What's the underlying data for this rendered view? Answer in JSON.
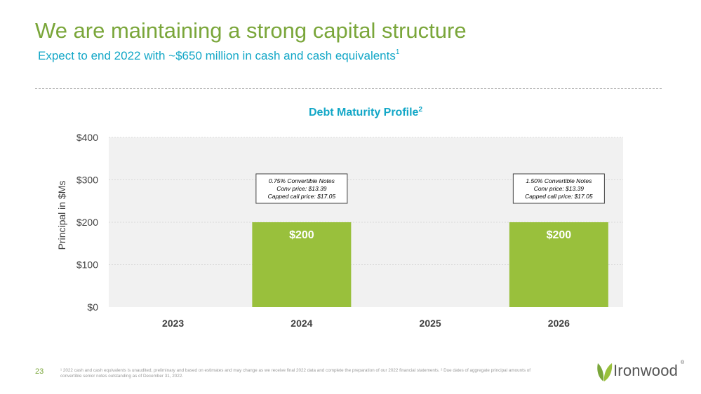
{
  "header": {
    "title": "We are maintaining a strong capital structure",
    "subtitle": "Expect to end 2022 with ~$650 million in cash and cash equivalents",
    "subtitle_footnote": "1"
  },
  "colors": {
    "title": "#7aa63a",
    "accent_teal": "#13a7c7",
    "bar": "#99c03c",
    "plot_background": "#f1f1f1"
  },
  "chart_data": {
    "type": "bar",
    "title": "Debt Maturity Profile",
    "title_footnote": "2",
    "ylabel": "Principal in $Ms",
    "xlabel": "",
    "categories": [
      "2023",
      "2024",
      "2025",
      "2026"
    ],
    "values": [
      0,
      200,
      0,
      200
    ],
    "data_labels": [
      "",
      "$200",
      "",
      "$200"
    ],
    "ylim": [
      0,
      400
    ],
    "yticks": [
      0,
      100,
      200,
      300,
      400
    ],
    "ytick_labels": [
      "$0",
      "$100",
      "$200",
      "$300",
      "$400"
    ],
    "grid": true,
    "annotations": [
      {
        "category": "2024",
        "lines": [
          "0.75% Convertible Notes",
          "Conv price: $13.39",
          "Capped call price: $17.05"
        ]
      },
      {
        "category": "2026",
        "lines": [
          "1.50% Convertible Notes",
          "Conv price: $13.39",
          "Capped call price: $17.05"
        ]
      }
    ]
  },
  "footer": {
    "page_number": "23",
    "footnotes": "¹ 2022 cash and cash equivalents is unaudited, preliminary and based on estimates and may change as we receive final 2022 data and complete the preparation of our 2022 financial statements. ² Due dates of aggregate principal amounts of convertible senior notes outstanding as of December 31, 2022.",
    "logo_text": "Ironwood",
    "logo_reg": "®",
    "logo_icon": "leaf-icon"
  }
}
